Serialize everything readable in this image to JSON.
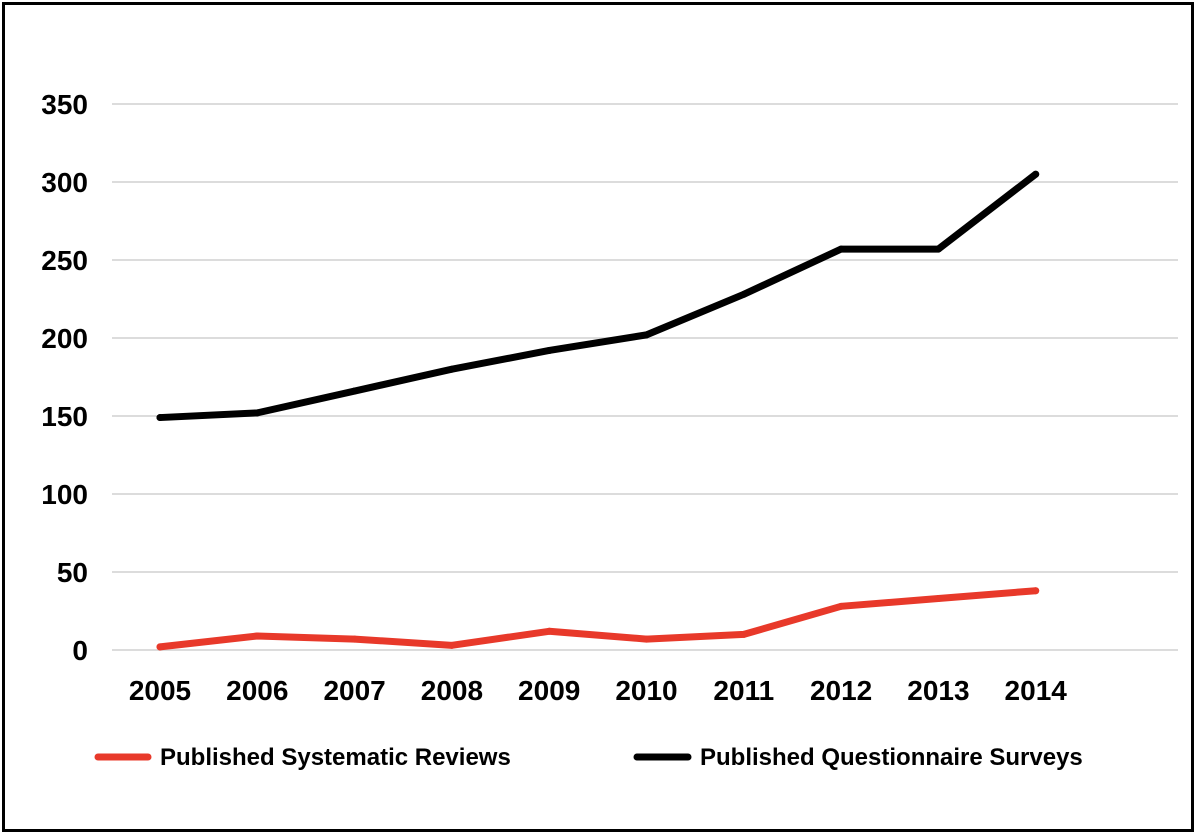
{
  "chart_data": {
    "type": "line",
    "categories": [
      "2005",
      "2006",
      "2007",
      "2008",
      "2009",
      "2010",
      "2011",
      "2012",
      "2013",
      "2014"
    ],
    "series": [
      {
        "name": "Published Systematic Reviews",
        "color": "#e8392a",
        "values": [
          2,
          9,
          7,
          3,
          12,
          7,
          10,
          28,
          33,
          38
        ]
      },
      {
        "name": "Published Questionnaire Surveys",
        "color": "#000000",
        "values": [
          149,
          152,
          166,
          180,
          192,
          202,
          228,
          257,
          257,
          305
        ]
      }
    ],
    "yticks": [
      0,
      50,
      100,
      150,
      200,
      250,
      300,
      350
    ],
    "ylim": [
      0,
      350
    ],
    "title": "",
    "xlabel": "",
    "ylabel": "",
    "grid": true,
    "legend_position": "bottom"
  }
}
